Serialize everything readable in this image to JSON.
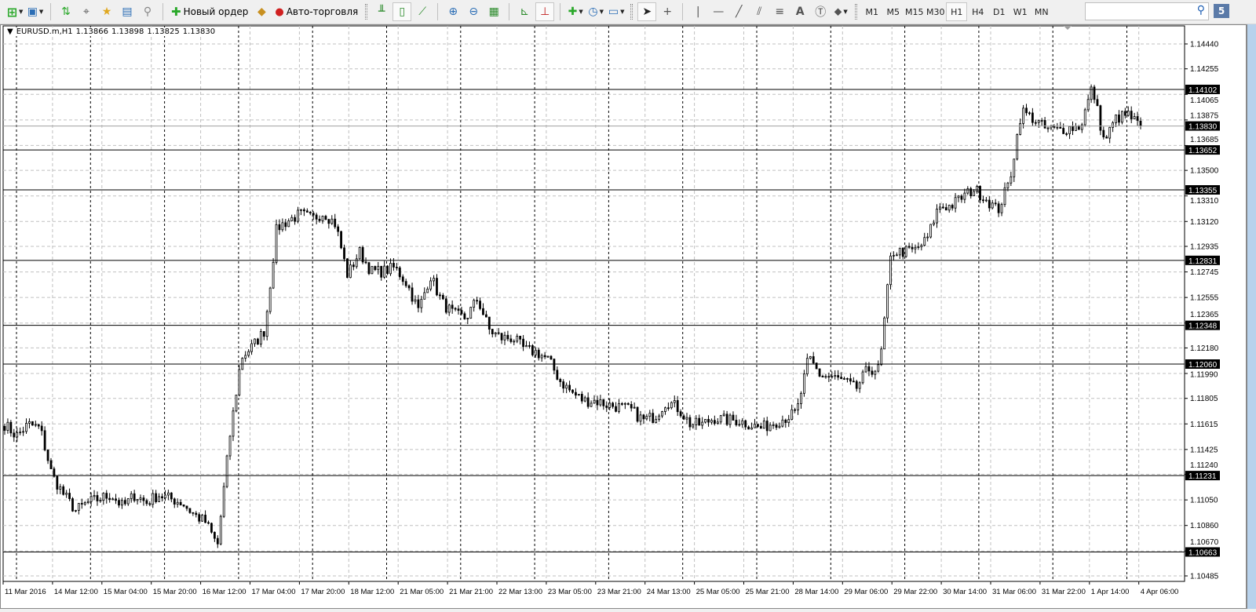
{
  "toolbar": {
    "new_order_label": "Новый ордер",
    "auto_trading_label": "Авто-торговля",
    "timeframes": [
      "M1",
      "M5",
      "M15",
      "M30",
      "H1",
      "H4",
      "D1",
      "W1",
      "MN"
    ],
    "active_timeframe": "H1",
    "search_value": "",
    "chat_badge": "5"
  },
  "chart": {
    "symbol": "EURUSD.m,H1",
    "open": "1.13866",
    "high": "1.13898",
    "low": "1.13825",
    "close": "1.13830",
    "current_price": "1.13830",
    "colors": {
      "background": "#ffffff",
      "candle": "#000000",
      "grid": "#c0c0c0",
      "separator": "#000000",
      "price_line": "#a0a0a0",
      "level_label_bg": "#000000"
    }
  },
  "chart_data": {
    "type": "candlestick",
    "price_ticks": [
      "1.14440",
      "1.14255",
      "1.14065",
      "1.13875",
      "1.13685",
      "1.13500",
      "1.13310",
      "1.13120",
      "1.12935",
      "1.12745",
      "1.12555",
      "1.12365",
      "1.12180",
      "1.11990",
      "1.11805",
      "1.11615",
      "1.11425",
      "1.11240",
      "1.11050",
      "1.10860",
      "1.10670",
      "1.10485"
    ],
    "ylim": [
      1.10485,
      1.1444
    ],
    "time_ticks": [
      "11 Mar 2016",
      "14 Mar 12:00",
      "15 Mar 04:00",
      "15 Mar 20:00",
      "16 Mar 12:00",
      "17 Mar 04:00",
      "17 Mar 20:00",
      "18 Mar 12:00",
      "21 Mar 05:00",
      "21 Mar 21:00",
      "22 Mar 13:00",
      "23 Mar 05:00",
      "23 Mar 21:00",
      "24 Mar 13:00",
      "25 Mar 05:00",
      "25 Mar 21:00",
      "28 Mar 14:00",
      "29 Mar 06:00",
      "29 Mar 22:00",
      "30 Mar 14:00",
      "31 Mar 06:00",
      "31 Mar 22:00",
      "1 Apr 14:00",
      "4 Apr 06:00"
    ],
    "horizontal_levels": [
      "1.14102",
      "1.13652",
      "1.13355",
      "1.12831",
      "1.12348",
      "1.12060",
      "1.11231",
      "1.10663"
    ],
    "grid": true,
    "period_separators": true,
    "close_path": [
      1.11612,
      1.11525,
      1.11612,
      1.11583,
      1.11233,
      1.11088,
      1.10971,
      1.11029,
      1.11059,
      1.11088,
      1.11,
      1.11088,
      1.11029,
      1.11088,
      1.11059,
      1.11029,
      1.10942,
      1.10884,
      1.10709,
      1.11496,
      1.12108,
      1.12195,
      1.12312,
      1.1307,
      1.13128,
      1.13175,
      1.1314,
      1.13187,
      1.13099,
      1.1272,
      1.12895,
      1.12749,
      1.12749,
      1.12778,
      1.12662,
      1.12458,
      1.1272,
      1.12516,
      1.12429,
      1.124,
      1.12545,
      1.12312,
      1.12254,
      1.12254,
      1.12166,
      1.12149,
      1.12091,
      1.11933,
      1.11846,
      1.11787,
      1.11787,
      1.11758,
      1.11741,
      1.11717,
      1.11642,
      1.11671,
      1.11787,
      1.11729,
      1.11612,
      1.11612,
      1.11659,
      1.11642,
      1.11642,
      1.11612,
      1.11583,
      1.11624,
      1.11659,
      1.117,
      1.12108,
      1.11974,
      1.11962,
      1.11933,
      1.11875,
      1.12021,
      1.12021,
      1.12895,
      1.12895,
      1.12907,
      1.12982,
      1.13233,
      1.13233,
      1.13303,
      1.13361,
      1.13291,
      1.13198,
      1.1342,
      1.13944,
      1.13886,
      1.1381,
      1.13799,
      1.13816,
      1.13828,
      1.14119,
      1.13711,
      1.13886,
      1.13915,
      1.1383
    ]
  }
}
